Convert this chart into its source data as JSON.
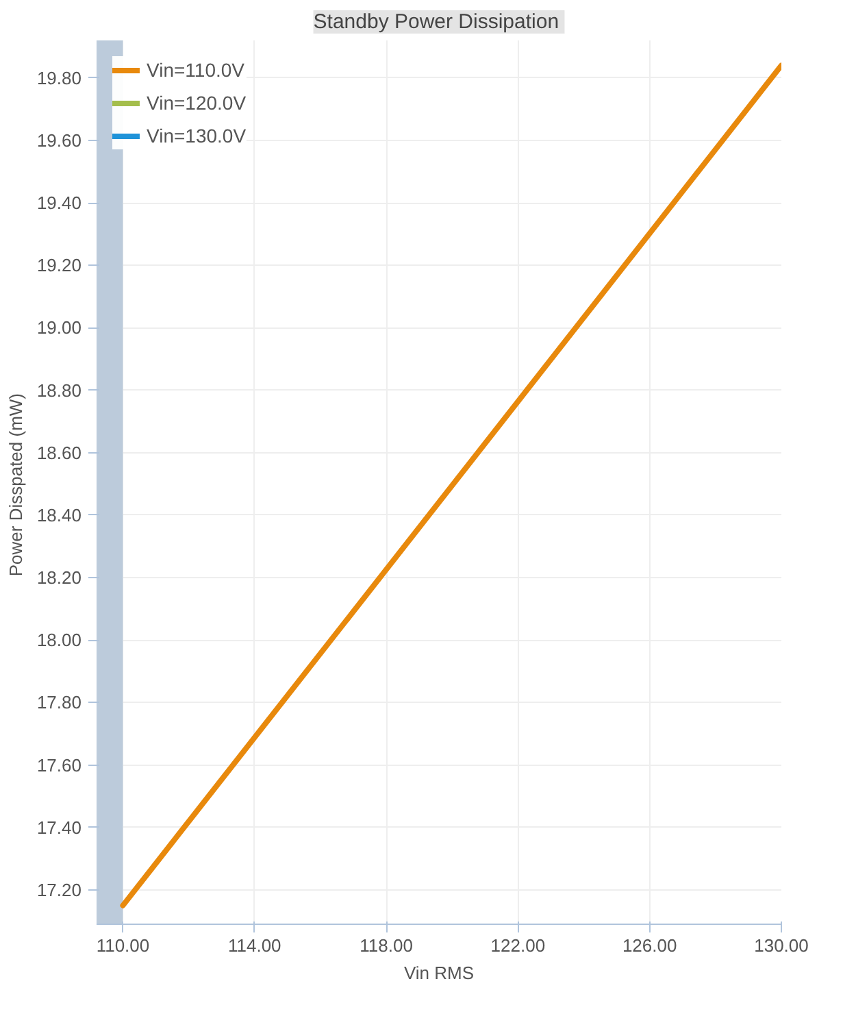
{
  "chart_data": {
    "type": "line",
    "title": "Standby  Power Dissipation",
    "xlabel": "Vin RMS",
    "ylabel": "Power Disspated  (mW)",
    "x": [
      110,
      130
    ],
    "series": [
      {
        "name": "Vin=110.0V",
        "color": "#e8890c",
        "values": [
          17.15,
          19.84
        ]
      },
      {
        "name": "Vin=120.0V",
        "color": "#a4be4c",
        "values": [
          null,
          null
        ]
      },
      {
        "name": "Vin=130.0V",
        "color": "#1f93d9",
        "values": [
          null,
          null
        ]
      }
    ],
    "xlim": [
      109.2,
      130
    ],
    "ylim": [
      17.09,
      19.92
    ],
    "xticks": [
      {
        "value": 110,
        "label": "110.00"
      },
      {
        "value": 114,
        "label": "114.00"
      },
      {
        "value": 118,
        "label": "118.00"
      },
      {
        "value": 122,
        "label": "122.00"
      },
      {
        "value": 126,
        "label": "126.00"
      },
      {
        "value": 130,
        "label": "130.00"
      }
    ],
    "yticks": [
      {
        "value": 17.2,
        "label": "17.20"
      },
      {
        "value": 17.4,
        "label": "17.40"
      },
      {
        "value": 17.6,
        "label": "17.60"
      },
      {
        "value": 17.8,
        "label": "17.80"
      },
      {
        "value": 18.0,
        "label": "18.00"
      },
      {
        "value": 18.2,
        "label": "18.20"
      },
      {
        "value": 18.4,
        "label": "18.40"
      },
      {
        "value": 18.6,
        "label": "18.60"
      },
      {
        "value": 18.8,
        "label": "18.80"
      },
      {
        "value": 19.0,
        "label": "19.00"
      },
      {
        "value": 19.2,
        "label": "19.20"
      },
      {
        "value": 19.4,
        "label": "19.40"
      },
      {
        "value": 19.6,
        "label": "19.60"
      },
      {
        "value": 19.8,
        "label": "19.80"
      }
    ],
    "bands": [
      {
        "axis": "x",
        "from": 109.2,
        "to": 110,
        "color": "#bccbdb"
      }
    ],
    "grid": true,
    "legend": "top left",
    "marker": "none",
    "line_style": "solid"
  }
}
